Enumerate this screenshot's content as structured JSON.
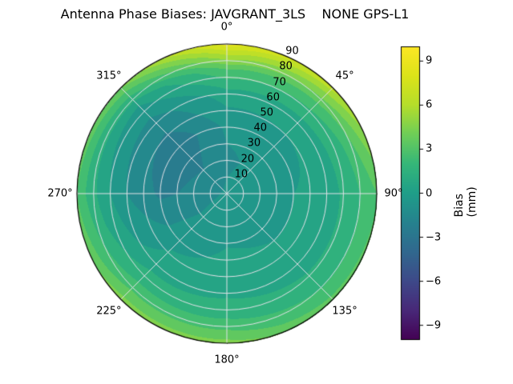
{
  "chart_data": {
    "type": "heatmap",
    "projection": "polar",
    "title": "Antenna Phase Biases: JAVGRANT_3LS    NONE GPS-L1",
    "angular_ticks_deg": [
      0,
      45,
      90,
      135,
      180,
      225,
      270,
      315
    ],
    "angular_tick_labels": [
      "0°",
      "45°",
      "90°",
      "135°",
      "180°",
      "225°",
      "270°",
      "315°"
    ],
    "radial_ticks": [
      10,
      20,
      30,
      40,
      50,
      60,
      70,
      80,
      90
    ],
    "radial_tick_labels": [
      "10",
      "20",
      "30",
      "40",
      "50",
      "60",
      "70",
      "80",
      "90"
    ],
    "radial_range": [
      0,
      90
    ],
    "radial_label_angle_deg": 22.5,
    "grid_on": true,
    "colorbar": {
      "label": "Bias (mm)",
      "ticks": [
        9,
        6,
        3,
        0,
        -3,
        -6,
        -9
      ],
      "tick_labels": [
        "9",
        "6",
        "3",
        "0",
        "−3",
        "−6",
        "−9"
      ],
      "vmin": -10,
      "vmax": 10
    },
    "contour_step_mm": 1.0,
    "grid": {
      "azimuth_deg": [
        0,
        45,
        90,
        135,
        180,
        225,
        270,
        315,
        360
      ],
      "radius": [
        0,
        20,
        40,
        60,
        75,
        85,
        90
      ],
      "bias_mm": [
        [
          -0.8,
          -1.2,
          -0.8,
          0.5,
          3.0,
          6.5,
          8.5
        ],
        [
          -0.8,
          -0.8,
          -0.5,
          0.5,
          2.5,
          5.0,
          6.5
        ],
        [
          -0.8,
          -0.5,
          0.0,
          0.5,
          1.5,
          2.5,
          3.0
        ],
        [
          -0.8,
          -0.3,
          0.0,
          0.5,
          1.5,
          2.5,
          3.5
        ],
        [
          -0.8,
          -0.3,
          0.2,
          0.8,
          2.0,
          3.5,
          4.5
        ],
        [
          -0.8,
          -0.8,
          -0.3,
          0.5,
          2.0,
          3.5,
          4.5
        ],
        [
          -0.8,
          -1.8,
          -2.2,
          -1.0,
          0.5,
          2.0,
          3.0
        ],
        [
          -0.8,
          -2.0,
          -2.8,
          -1.5,
          0.0,
          2.5,
          4.0
        ],
        [
          -0.8,
          -1.2,
          -0.8,
          0.5,
          3.0,
          6.5,
          8.5
        ]
      ]
    },
    "colormap": {
      "name": "viridis",
      "stops": [
        "#440154",
        "#482878",
        "#3e4989",
        "#31688e",
        "#26828e",
        "#1f9e89",
        "#35b779",
        "#6ece58",
        "#b5de2b",
        "#dce319",
        "#fde725"
      ]
    },
    "colors": {
      "grid_line": "#e2e2e8",
      "outline": "#000000",
      "background": "#ffffff"
    }
  }
}
